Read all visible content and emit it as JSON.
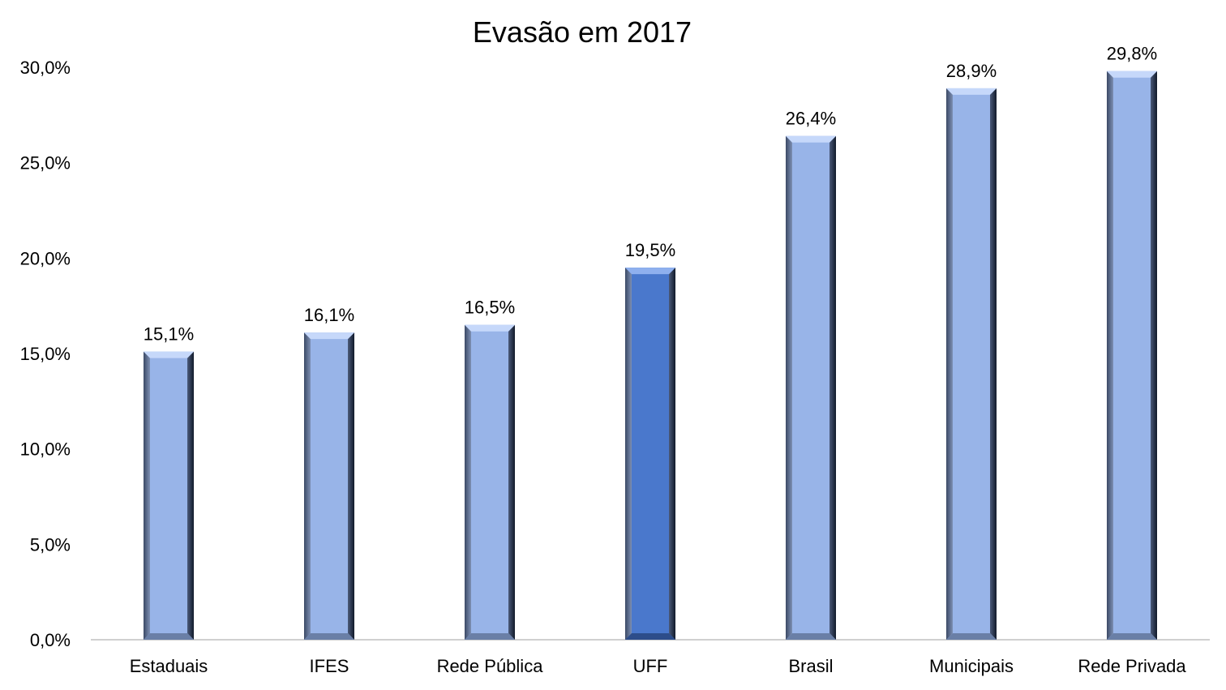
{
  "chart_data": {
    "type": "bar",
    "title": "Evasão em 2017",
    "categories": [
      "Estaduais",
      "IFES",
      "Rede Pública",
      "UFF",
      "Brasil",
      "Municipais",
      "Rede Privada"
    ],
    "values": [
      15.1,
      16.1,
      16.5,
      19.5,
      26.4,
      28.9,
      29.8
    ],
    "data_labels": [
      "15,1%",
      "16,1%",
      "16,5%",
      "19,5%",
      "26,4%",
      "28,9%",
      "29,8%"
    ],
    "highlight_category": "UFF",
    "ylim": [
      0,
      30
    ],
    "yticks": [
      0,
      5,
      10,
      15,
      20,
      25,
      30
    ],
    "ytick_labels": [
      "0,0%",
      "5,0%",
      "10,0%",
      "15,0%",
      "20,0%",
      "25,0%",
      "30,0%"
    ],
    "xlabel": "",
    "ylabel": "",
    "grid": false,
    "legend": "none",
    "colors": {
      "default": "#98b4e8",
      "highlight": "#4a78cc"
    }
  }
}
